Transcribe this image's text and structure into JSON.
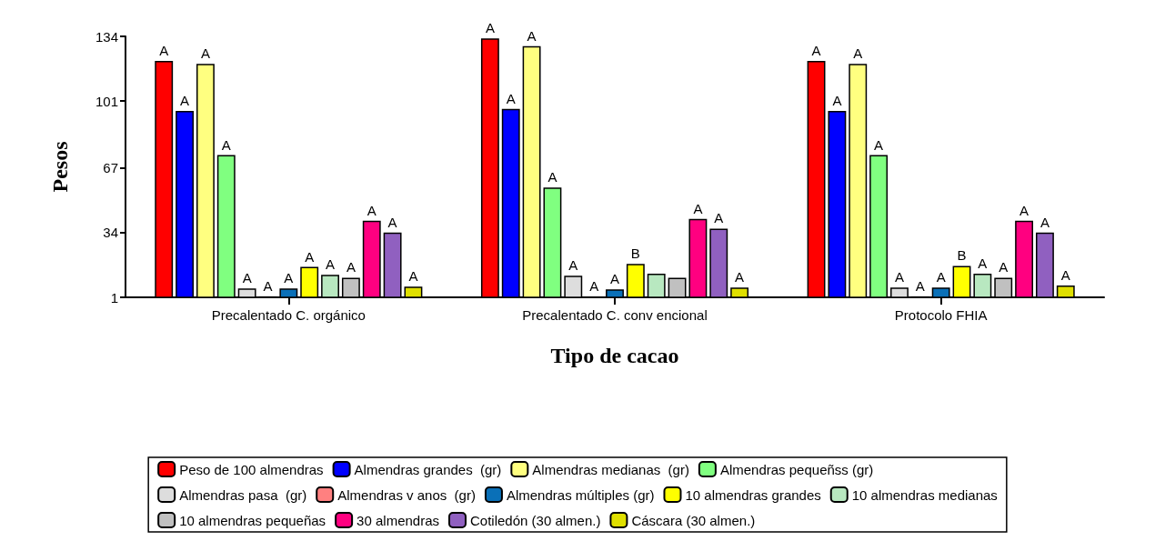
{
  "chart_data": {
    "type": "bar",
    "xlabel": "Tipo de cacao",
    "ylabel": "Pesos",
    "categories": [
      "Precalentado C. orgánico",
      "Precalentado C. conv encional",
      "Protocolo FHIA"
    ],
    "ylim": [
      1,
      134
    ],
    "yticks": [
      1,
      34,
      67,
      101,
      134
    ],
    "grid": false,
    "legend": "bottom",
    "series": [
      {
        "name": "Peso de 100 almendras",
        "color": "#ff0000",
        "values": [
          121.5,
          133,
          121.5
        ],
        "value_labels": [
          "A",
          "A",
          "A"
        ]
      },
      {
        "name": "Almendras grandes  (gr)",
        "color": "#0000ff",
        "values": [
          96,
          97,
          96
        ],
        "value_labels": [
          "A",
          "A",
          "A"
        ]
      },
      {
        "name": "Almendras medianas  (gr)",
        "color": "#ffff80",
        "values": [
          120,
          129,
          120
        ],
        "value_labels": [
          "A",
          "A",
          "A"
        ]
      },
      {
        "name": "Almendras pequeñss (gr)",
        "color": "#80ff80",
        "values": [
          73.5,
          57,
          73.5
        ],
        "value_labels": [
          "A",
          "A",
          "A"
        ]
      },
      {
        "name": "Almendras pasa  (gr)",
        "color": "#dddddd",
        "values": [
          5.5,
          12,
          6
        ],
        "value_labels": [
          "A",
          "A",
          "A"
        ]
      },
      {
        "name": "Almendras v anos  (gr)",
        "color": "#ff8080",
        "values": [
          1.5,
          1.5,
          1.5
        ],
        "value_labels": [
          "A",
          "A",
          "A"
        ]
      },
      {
        "name": "Almendras múltiples (gr)",
        "color": "#0a70b8",
        "values": [
          5.5,
          5,
          6
        ],
        "value_labels": [
          "A",
          "A",
          "A"
        ]
      },
      {
        "name": "10 almendras grandes",
        "color": "#ffff00",
        "values": [
          16.5,
          18,
          17
        ],
        "value_labels": [
          "A",
          "B",
          "B"
        ]
      },
      {
        "name": "10 almendras medianas",
        "color": "#b8e8c0",
        "values": [
          12.5,
          13,
          13
        ],
        "value_labels": [
          "A",
          null,
          "A"
        ]
      },
      {
        "name": "10 almendras pequeñas",
        "color": "#c0c0c0",
        "values": [
          11,
          11,
          11
        ],
        "value_labels": [
          "A",
          null,
          "A"
        ]
      },
      {
        "name": "30 almendras",
        "color": "#ff0080",
        "values": [
          40,
          41,
          40
        ],
        "value_labels": [
          "A",
          "A",
          "A"
        ]
      },
      {
        "name": "Cotiledón (30 almen.)",
        "color": "#9060c0",
        "values": [
          34,
          36,
          34
        ],
        "value_labels": [
          "A",
          "A",
          "A"
        ]
      },
      {
        "name": "Cáscara (30 almen.)",
        "color": "#e0e000",
        "values": [
          6.5,
          6,
          7
        ],
        "value_labels": [
          "A",
          "A",
          "A"
        ]
      }
    ]
  }
}
